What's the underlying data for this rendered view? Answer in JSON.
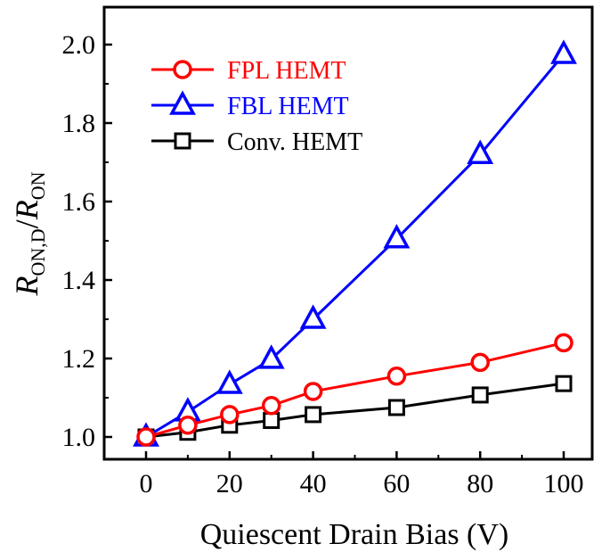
{
  "chart_data": {
    "type": "line",
    "xlabel": "Quiescent Drain Bias (V)",
    "ylabel_main": "R",
    "ylabel_sub1": "ON,D",
    "ylabel_slash": "/",
    "ylabel_main2": "R",
    "ylabel_sub2": "ON",
    "xlim": [
      -10,
      105
    ],
    "ylim": [
      0.9,
      2.1
    ],
    "xticks": [
      0,
      20,
      40,
      60,
      80,
      100
    ],
    "xtick_labels": [
      "0",
      "20",
      "40",
      "60",
      "80",
      "100"
    ],
    "yticks": [
      1.0,
      1.2,
      1.4,
      1.6,
      1.8,
      2.0
    ],
    "ytick_labels": [
      "1.0",
      "1.2",
      "1.4",
      "1.6",
      "1.8",
      "2.0"
    ],
    "grid": false,
    "legend_position": "top-left",
    "x": [
      0,
      10,
      20,
      30,
      40,
      60,
      80,
      100
    ],
    "series": [
      {
        "name": "FPL HEMT",
        "color": "#ff0000",
        "marker": "circle",
        "values": [
          1.0,
          1.03,
          1.057,
          1.08,
          1.116,
          1.155,
          1.19,
          1.24
        ]
      },
      {
        "name": "FBL HEMT",
        "color": "#0000ff",
        "marker": "triangle",
        "values": [
          1.0,
          1.064,
          1.134,
          1.198,
          1.3,
          1.505,
          1.72,
          1.975
        ]
      },
      {
        "name": "Conv. HEMT",
        "color": "#000000",
        "marker": "square",
        "values": [
          1.0,
          1.012,
          1.03,
          1.042,
          1.057,
          1.075,
          1.107,
          1.136
        ]
      }
    ]
  }
}
